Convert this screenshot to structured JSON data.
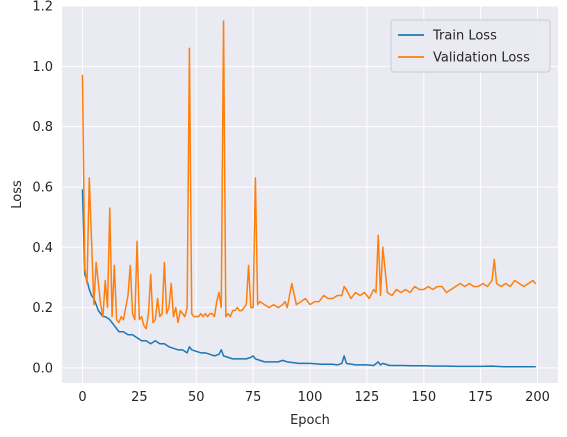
{
  "chart_data": {
    "type": "line",
    "xlabel": "Epoch",
    "ylabel": "Loss",
    "xlim": [
      -9,
      209
    ],
    "ylim": [
      -0.05,
      1.2
    ],
    "xticks": [
      0,
      25,
      50,
      75,
      100,
      125,
      150,
      175,
      200
    ],
    "yticks": [
      0.0,
      0.2,
      0.4,
      0.6,
      0.8,
      1.0,
      1.2
    ],
    "grid": true,
    "legend_position": "top-right",
    "background": "#eaeaf2",
    "series": [
      {
        "name": "Train Loss",
        "color": "#1f77b4",
        "x": [
          0,
          1,
          2,
          3,
          4,
          5,
          6,
          7,
          8,
          9,
          10,
          12,
          14,
          16,
          18,
          20,
          22,
          24,
          26,
          28,
          30,
          32,
          34,
          36,
          38,
          40,
          42,
          44,
          46,
          47,
          48,
          50,
          52,
          54,
          56,
          58,
          60,
          61,
          62,
          64,
          66,
          68,
          70,
          72,
          74,
          75,
          76,
          78,
          80,
          82,
          84,
          86,
          88,
          90,
          95,
          100,
          105,
          110,
          112,
          114,
          115,
          116,
          120,
          125,
          128,
          130,
          131,
          132,
          135,
          140,
          145,
          150,
          155,
          160,
          165,
          170,
          175,
          180,
          185,
          190,
          195,
          199
        ],
        "y": [
          0.59,
          0.31,
          0.29,
          0.26,
          0.24,
          0.23,
          0.21,
          0.19,
          0.18,
          0.17,
          0.17,
          0.16,
          0.14,
          0.12,
          0.12,
          0.11,
          0.11,
          0.1,
          0.09,
          0.09,
          0.08,
          0.09,
          0.08,
          0.08,
          0.07,
          0.065,
          0.06,
          0.06,
          0.05,
          0.07,
          0.06,
          0.055,
          0.05,
          0.05,
          0.045,
          0.04,
          0.045,
          0.06,
          0.04,
          0.035,
          0.03,
          0.03,
          0.03,
          0.03,
          0.035,
          0.04,
          0.03,
          0.025,
          0.02,
          0.02,
          0.02,
          0.02,
          0.025,
          0.02,
          0.015,
          0.015,
          0.012,
          0.012,
          0.01,
          0.015,
          0.04,
          0.015,
          0.01,
          0.01,
          0.008,
          0.02,
          0.01,
          0.015,
          0.008,
          0.008,
          0.007,
          0.007,
          0.006,
          0.006,
          0.005,
          0.005,
          0.005,
          0.006,
          0.004,
          0.004,
          0.004,
          0.004
        ]
      },
      {
        "name": "Validation Loss",
        "color": "#ff7f0e",
        "x": [
          0,
          1,
          2,
          3,
          4,
          5,
          6,
          7,
          8,
          9,
          10,
          11,
          12,
          13,
          14,
          15,
          16,
          17,
          18,
          19,
          20,
          21,
          22,
          23,
          24,
          25,
          26,
          27,
          28,
          29,
          30,
          31,
          32,
          33,
          34,
          35,
          36,
          37,
          38,
          39,
          40,
          41,
          42,
          43,
          44,
          45,
          46,
          47,
          48,
          49,
          50,
          51,
          52,
          53,
          54,
          55,
          56,
          57,
          58,
          59,
          60,
          61,
          62,
          63,
          64,
          65,
          66,
          67,
          68,
          69,
          70,
          71,
          72,
          73,
          74,
          75,
          76,
          77,
          78,
          80,
          82,
          84,
          86,
          88,
          89,
          90,
          92,
          94,
          96,
          98,
          100,
          102,
          104,
          106,
          108,
          110,
          112,
          114,
          115,
          116,
          118,
          120,
          122,
          124,
          126,
          128,
          129,
          130,
          131,
          132,
          134,
          136,
          138,
          140,
          142,
          144,
          146,
          148,
          150,
          152,
          154,
          156,
          158,
          160,
          162,
          164,
          166,
          168,
          170,
          172,
          174,
          176,
          178,
          179,
          180,
          181,
          182,
          184,
          186,
          188,
          190,
          192,
          194,
          196,
          198,
          199
        ],
        "y": [
          0.97,
          0.33,
          0.28,
          0.63,
          0.42,
          0.21,
          0.35,
          0.28,
          0.21,
          0.17,
          0.29,
          0.2,
          0.53,
          0.17,
          0.34,
          0.16,
          0.15,
          0.17,
          0.16,
          0.2,
          0.24,
          0.34,
          0.18,
          0.16,
          0.42,
          0.16,
          0.17,
          0.14,
          0.13,
          0.18,
          0.31,
          0.15,
          0.16,
          0.23,
          0.17,
          0.18,
          0.35,
          0.18,
          0.2,
          0.28,
          0.17,
          0.2,
          0.15,
          0.19,
          0.18,
          0.17,
          0.2,
          1.06,
          0.18,
          0.17,
          0.17,
          0.17,
          0.18,
          0.17,
          0.18,
          0.17,
          0.18,
          0.18,
          0.17,
          0.22,
          0.25,
          0.2,
          1.15,
          0.17,
          0.18,
          0.17,
          0.19,
          0.19,
          0.2,
          0.19,
          0.19,
          0.2,
          0.21,
          0.34,
          0.2,
          0.2,
          0.63,
          0.21,
          0.22,
          0.21,
          0.2,
          0.21,
          0.2,
          0.21,
          0.22,
          0.2,
          0.28,
          0.21,
          0.22,
          0.23,
          0.21,
          0.22,
          0.22,
          0.24,
          0.23,
          0.23,
          0.24,
          0.24,
          0.27,
          0.26,
          0.23,
          0.25,
          0.24,
          0.25,
          0.23,
          0.26,
          0.25,
          0.44,
          0.24,
          0.4,
          0.25,
          0.24,
          0.26,
          0.25,
          0.26,
          0.25,
          0.27,
          0.26,
          0.26,
          0.27,
          0.26,
          0.27,
          0.27,
          0.25,
          0.26,
          0.27,
          0.28,
          0.27,
          0.28,
          0.27,
          0.27,
          0.28,
          0.27,
          0.28,
          0.29,
          0.36,
          0.28,
          0.27,
          0.28,
          0.27,
          0.29,
          0.28,
          0.27,
          0.28,
          0.29,
          0.28
        ]
      }
    ]
  }
}
